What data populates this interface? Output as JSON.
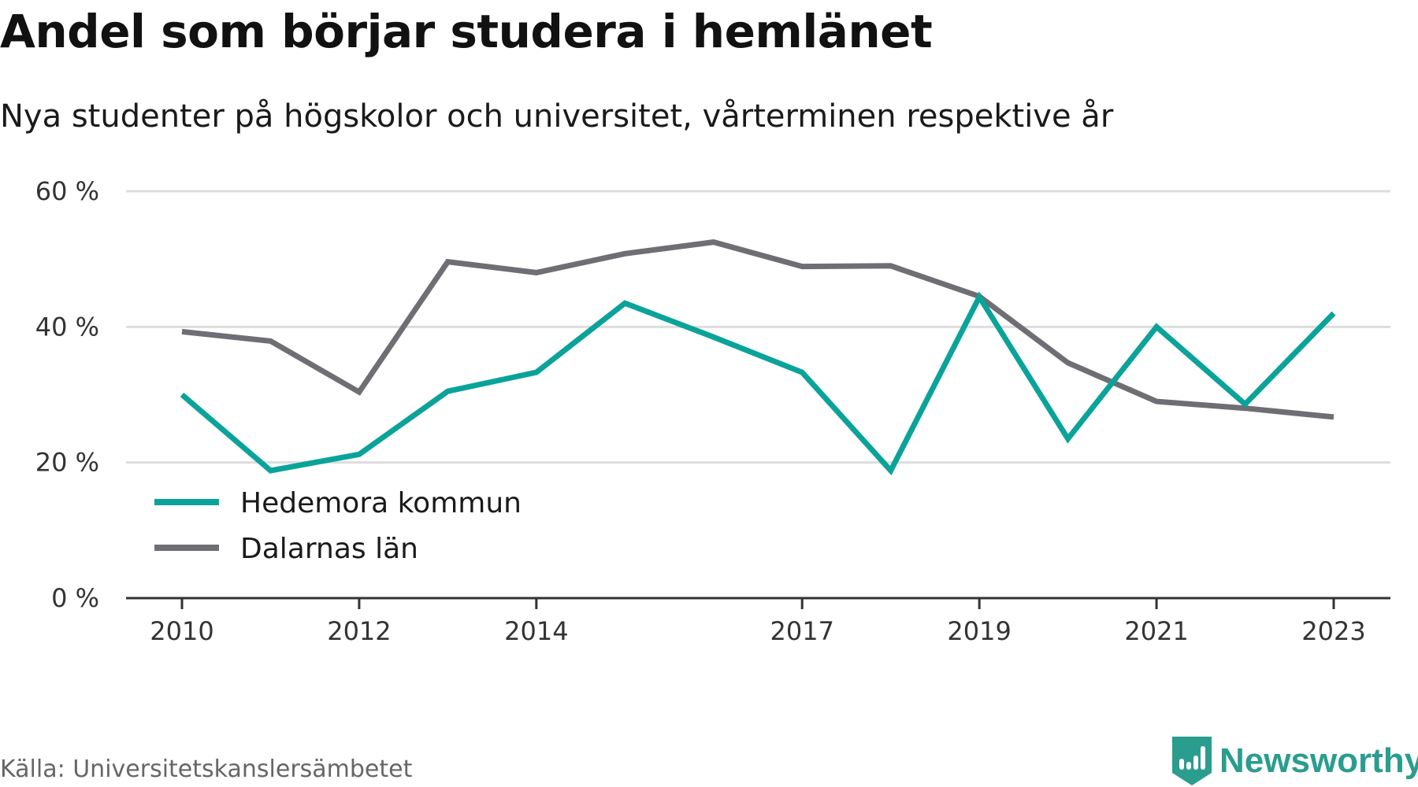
{
  "header": {
    "title": "Andel som börjar studera i hemlänet",
    "subtitle": "Nya studenter på högskolor och universitet, vårterminen respektive år"
  },
  "footer": {
    "source": "Källa: Universitetskanslersämbetet",
    "brand": "Newsworthy",
    "brand_icon": "bar-chart-shield-icon"
  },
  "colors": {
    "hedemora": "#0aa39a",
    "dalarna": "#6f6e74",
    "grid": "#dddddd",
    "axis": "#333333",
    "brand": "#2a9d8f"
  },
  "chart_data": {
    "type": "line",
    "title": "Andel som börjar studera i hemlänet",
    "subtitle": "Nya studenter på högskolor och universitet, vårterminen respektive år",
    "xlabel": "",
    "ylabel": "",
    "x": [
      2010,
      2011,
      2012,
      2013,
      2014,
      2015,
      2016,
      2017,
      2018,
      2019,
      2020,
      2021,
      2022,
      2023
    ],
    "xticks": [
      2010,
      2012,
      2014,
      2017,
      2019,
      2021,
      2023
    ],
    "xtick_labels": [
      "2010",
      "2012",
      "2014",
      "2017",
      "2019",
      "2021",
      "2023"
    ],
    "ylim": [
      0,
      60
    ],
    "yticks": [
      0,
      20,
      40,
      60
    ],
    "ytick_labels": [
      "0 %",
      "20 %",
      "40 %",
      "60 %"
    ],
    "grid": true,
    "legend_position": "bottom-left",
    "series": [
      {
        "name": "Hedemora kommun",
        "color": "#0aa39a",
        "values": [
          30.0,
          18.8,
          21.2,
          30.5,
          33.3,
          43.5,
          38.5,
          33.3,
          18.8,
          44.4,
          23.5,
          40.0,
          28.6,
          42.0
        ]
      },
      {
        "name": "Dalarnas län",
        "color": "#6f6e74",
        "values": [
          39.3,
          37.9,
          30.4,
          49.6,
          48.0,
          50.8,
          52.5,
          48.9,
          49.0,
          44.5,
          34.7,
          29.0,
          28.0,
          26.7
        ]
      }
    ]
  }
}
